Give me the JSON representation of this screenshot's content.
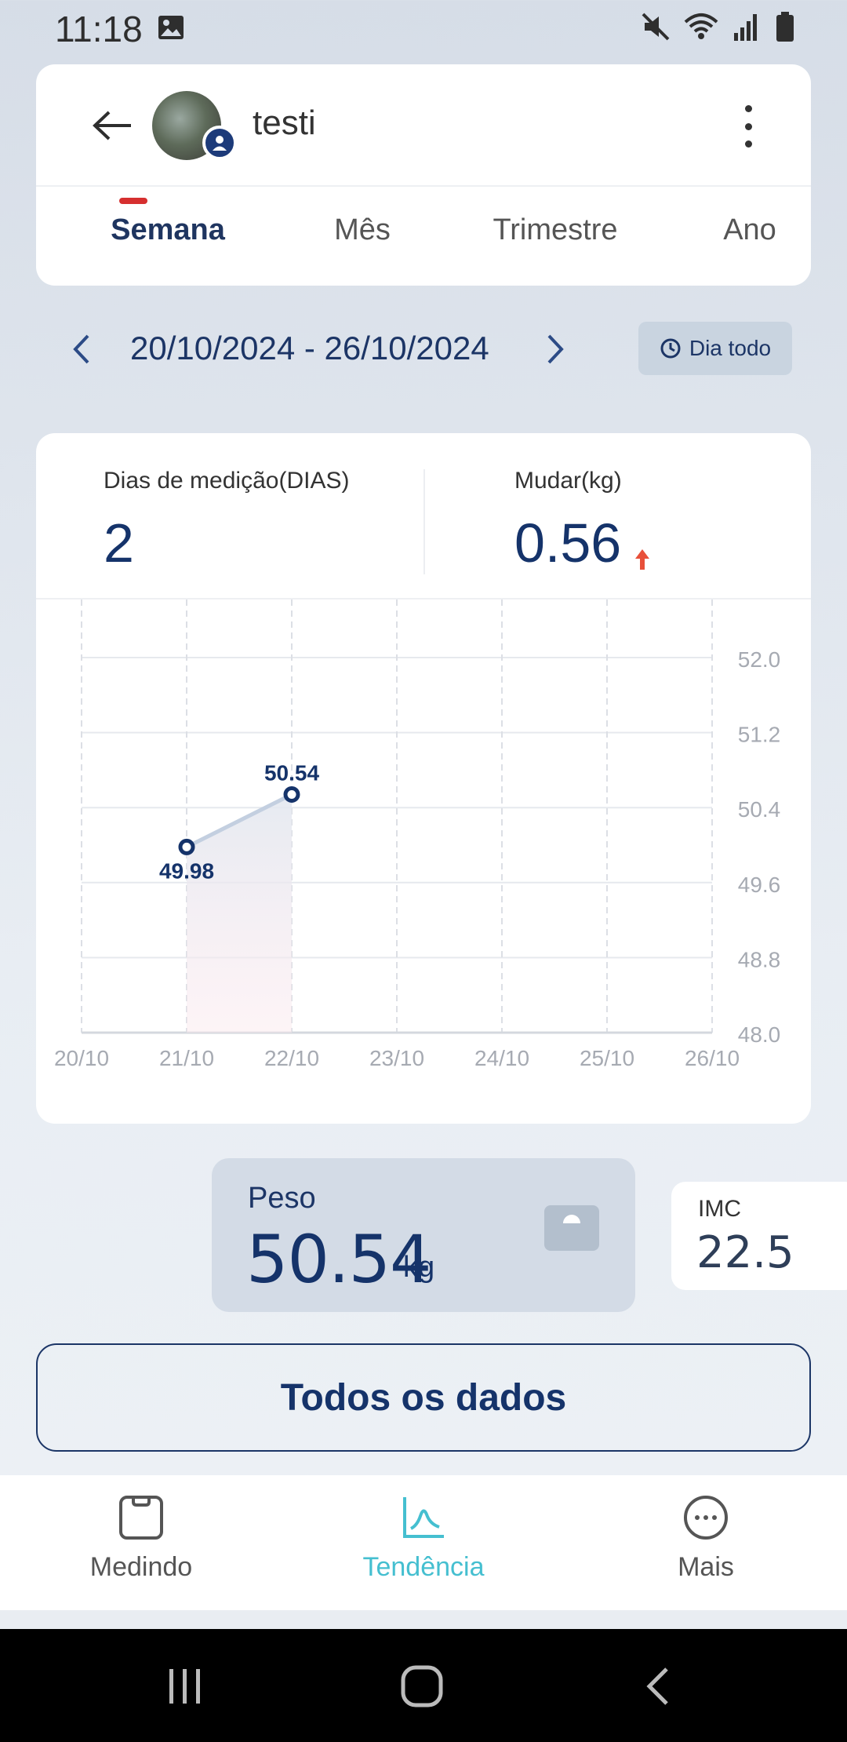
{
  "status_bar": {
    "time": "11:18"
  },
  "header": {
    "user_name": "testi",
    "tabs": [
      "Semana",
      "Mês",
      "Trimestre",
      "Ano"
    ],
    "active_tab": "Semana"
  },
  "date_range": {
    "label": "20/10/2024 - 26/10/2024",
    "filter_label": "Dia todo"
  },
  "stats": {
    "days_label": "Dias de medição(DIAS)",
    "days_value": "2",
    "change_label": "Mudar(kg)",
    "change_value": "0.56",
    "change_direction": "up"
  },
  "chart_data": {
    "type": "line",
    "x": [
      "20/10",
      "21/10",
      "22/10",
      "23/10",
      "24/10",
      "25/10",
      "26/10"
    ],
    "y_ticks": [
      "52.0",
      "51.2",
      "50.4",
      "49.6",
      "48.8",
      "48.0"
    ],
    "ylim": [
      48.0,
      52.0
    ],
    "series": [
      {
        "points": [
          {
            "x": "21/10",
            "y": 49.98
          },
          {
            "x": "22/10",
            "y": 50.54
          }
        ]
      }
    ],
    "data_labels": [
      "49.98",
      "50.54"
    ],
    "grid": true,
    "line_color": "#c3cfe0",
    "marker_color": "#15336a"
  },
  "metrics": {
    "weight_label": "Peso",
    "weight_value": "50.54",
    "weight_unit": "kg",
    "imc_label": "IMC",
    "imc_value": "22.5"
  },
  "all_data_button": "Todos os dados",
  "bottom_nav": {
    "items": [
      {
        "label": "Medindo",
        "icon": "scale-icon"
      },
      {
        "label": "Tendência",
        "icon": "trend-icon"
      },
      {
        "label": "Mais",
        "icon": "more-icon"
      }
    ],
    "active": "Tendência"
  },
  "colors": {
    "accent": "#45bfd0",
    "primary": "#15336a",
    "tab_indicator": "#d62f2f",
    "change_up": "#e8503a"
  }
}
